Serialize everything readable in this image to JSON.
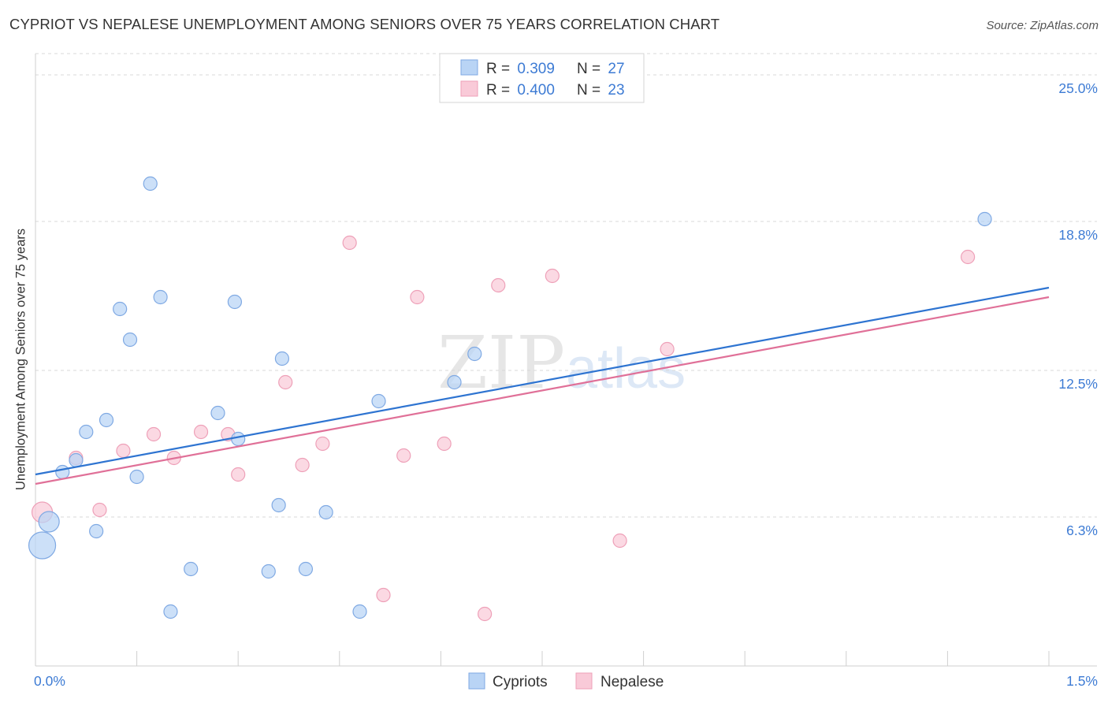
{
  "header": {
    "title": "CYPRIOT VS NEPALESE UNEMPLOYMENT AMONG SENIORS OVER 75 YEARS CORRELATION CHART",
    "source": "Source: ZipAtlas.com"
  },
  "watermark": {
    "zip": "ZIP",
    "atlas": "atlas"
  },
  "legend": {
    "entries": [
      {
        "r_label": "R = ",
        "r_value": "0.309",
        "n_label": "N = ",
        "n_value": "27"
      },
      {
        "r_label": "R = ",
        "r_value": "0.400",
        "n_label": "N = ",
        "n_value": "23"
      }
    ]
  },
  "colors": {
    "cypriots_fill": "#b9d4f5",
    "cypriots_stroke": "#7fa9e3",
    "cypriots_line": "#2e74d1",
    "nepalese_fill": "#f9cad8",
    "nepalese_stroke": "#eea0b8",
    "nepalese_line": "#e07098",
    "value_text": "#3d7bd4",
    "grid": "#d8d8d8"
  },
  "chart_data": {
    "type": "scatter",
    "title": "CYPRIOT VS NEPALESE UNEMPLOYMENT AMONG SENIORS OVER 75 YEARS CORRELATION CHART",
    "xlabel": "",
    "ylabel": "Unemployment Among Seniors over 75 years",
    "xlim": [
      0,
      1.5
    ],
    "ylim": [
      0,
      25.9
    ],
    "x_tick_labels": [
      "0.0%",
      "1.5%"
    ],
    "y_ticks": [
      6.3,
      12.5,
      18.8,
      25.0
    ],
    "y_tick_labels": [
      "6.3%",
      "12.5%",
      "18.8%",
      "25.0%"
    ],
    "legend_position": "bottom-center",
    "series": [
      {
        "name": "Cypriots",
        "r": 0.309,
        "n": 27,
        "trend": {
          "x": [
            0,
            1.5
          ],
          "y": [
            8.1,
            16.0
          ]
        },
        "points": [
          {
            "x": 0.01,
            "y": 5.1,
            "size": "large"
          },
          {
            "x": 0.02,
            "y": 6.1,
            "size": "medium"
          },
          {
            "x": 0.04,
            "y": 8.2
          },
          {
            "x": 0.06,
            "y": 8.7
          },
          {
            "x": 0.075,
            "y": 9.9
          },
          {
            "x": 0.09,
            "y": 5.7
          },
          {
            "x": 0.105,
            "y": 10.4
          },
          {
            "x": 0.125,
            "y": 15.1
          },
          {
            "x": 0.14,
            "y": 13.8
          },
          {
            "x": 0.15,
            "y": 8.0
          },
          {
            "x": 0.17,
            "y": 20.4
          },
          {
            "x": 0.185,
            "y": 15.6
          },
          {
            "x": 0.2,
            "y": 2.3
          },
          {
            "x": 0.23,
            "y": 4.1
          },
          {
            "x": 0.27,
            "y": 10.7
          },
          {
            "x": 0.295,
            "y": 15.4
          },
          {
            "x": 0.3,
            "y": 9.6
          },
          {
            "x": 0.345,
            "y": 4.0
          },
          {
            "x": 0.36,
            "y": 6.8
          },
          {
            "x": 0.365,
            "y": 13.0
          },
          {
            "x": 0.4,
            "y": 4.1
          },
          {
            "x": 0.43,
            "y": 6.5
          },
          {
            "x": 0.48,
            "y": 2.3
          },
          {
            "x": 0.508,
            "y": 11.2
          },
          {
            "x": 0.62,
            "y": 12.0
          },
          {
            "x": 0.65,
            "y": 13.2
          },
          {
            "x": 1.405,
            "y": 18.9
          }
        ]
      },
      {
        "name": "Nepalese",
        "r": 0.4,
        "n": 23,
        "trend": {
          "x": [
            0,
            1.5
          ],
          "y": [
            7.7,
            15.6
          ]
        },
        "points": [
          {
            "x": 0.01,
            "y": 6.5,
            "size": "medium"
          },
          {
            "x": 0.06,
            "y": 8.8
          },
          {
            "x": 0.095,
            "y": 6.6
          },
          {
            "x": 0.13,
            "y": 9.1
          },
          {
            "x": 0.175,
            "y": 9.8
          },
          {
            "x": 0.205,
            "y": 8.8
          },
          {
            "x": 0.245,
            "y": 9.9
          },
          {
            "x": 0.285,
            "y": 9.8
          },
          {
            "x": 0.3,
            "y": 8.1
          },
          {
            "x": 0.37,
            "y": 12.0
          },
          {
            "x": 0.395,
            "y": 8.5
          },
          {
            "x": 0.425,
            "y": 9.4
          },
          {
            "x": 0.465,
            "y": 17.9
          },
          {
            "x": 0.515,
            "y": 3.0
          },
          {
            "x": 0.545,
            "y": 8.9
          },
          {
            "x": 0.565,
            "y": 15.6
          },
          {
            "x": 0.605,
            "y": 9.4
          },
          {
            "x": 0.665,
            "y": 2.2
          },
          {
            "x": 0.685,
            "y": 16.1
          },
          {
            "x": 0.765,
            "y": 16.5
          },
          {
            "x": 0.865,
            "y": 5.3
          },
          {
            "x": 0.935,
            "y": 13.4
          },
          {
            "x": 1.38,
            "y": 17.3
          }
        ]
      }
    ]
  }
}
